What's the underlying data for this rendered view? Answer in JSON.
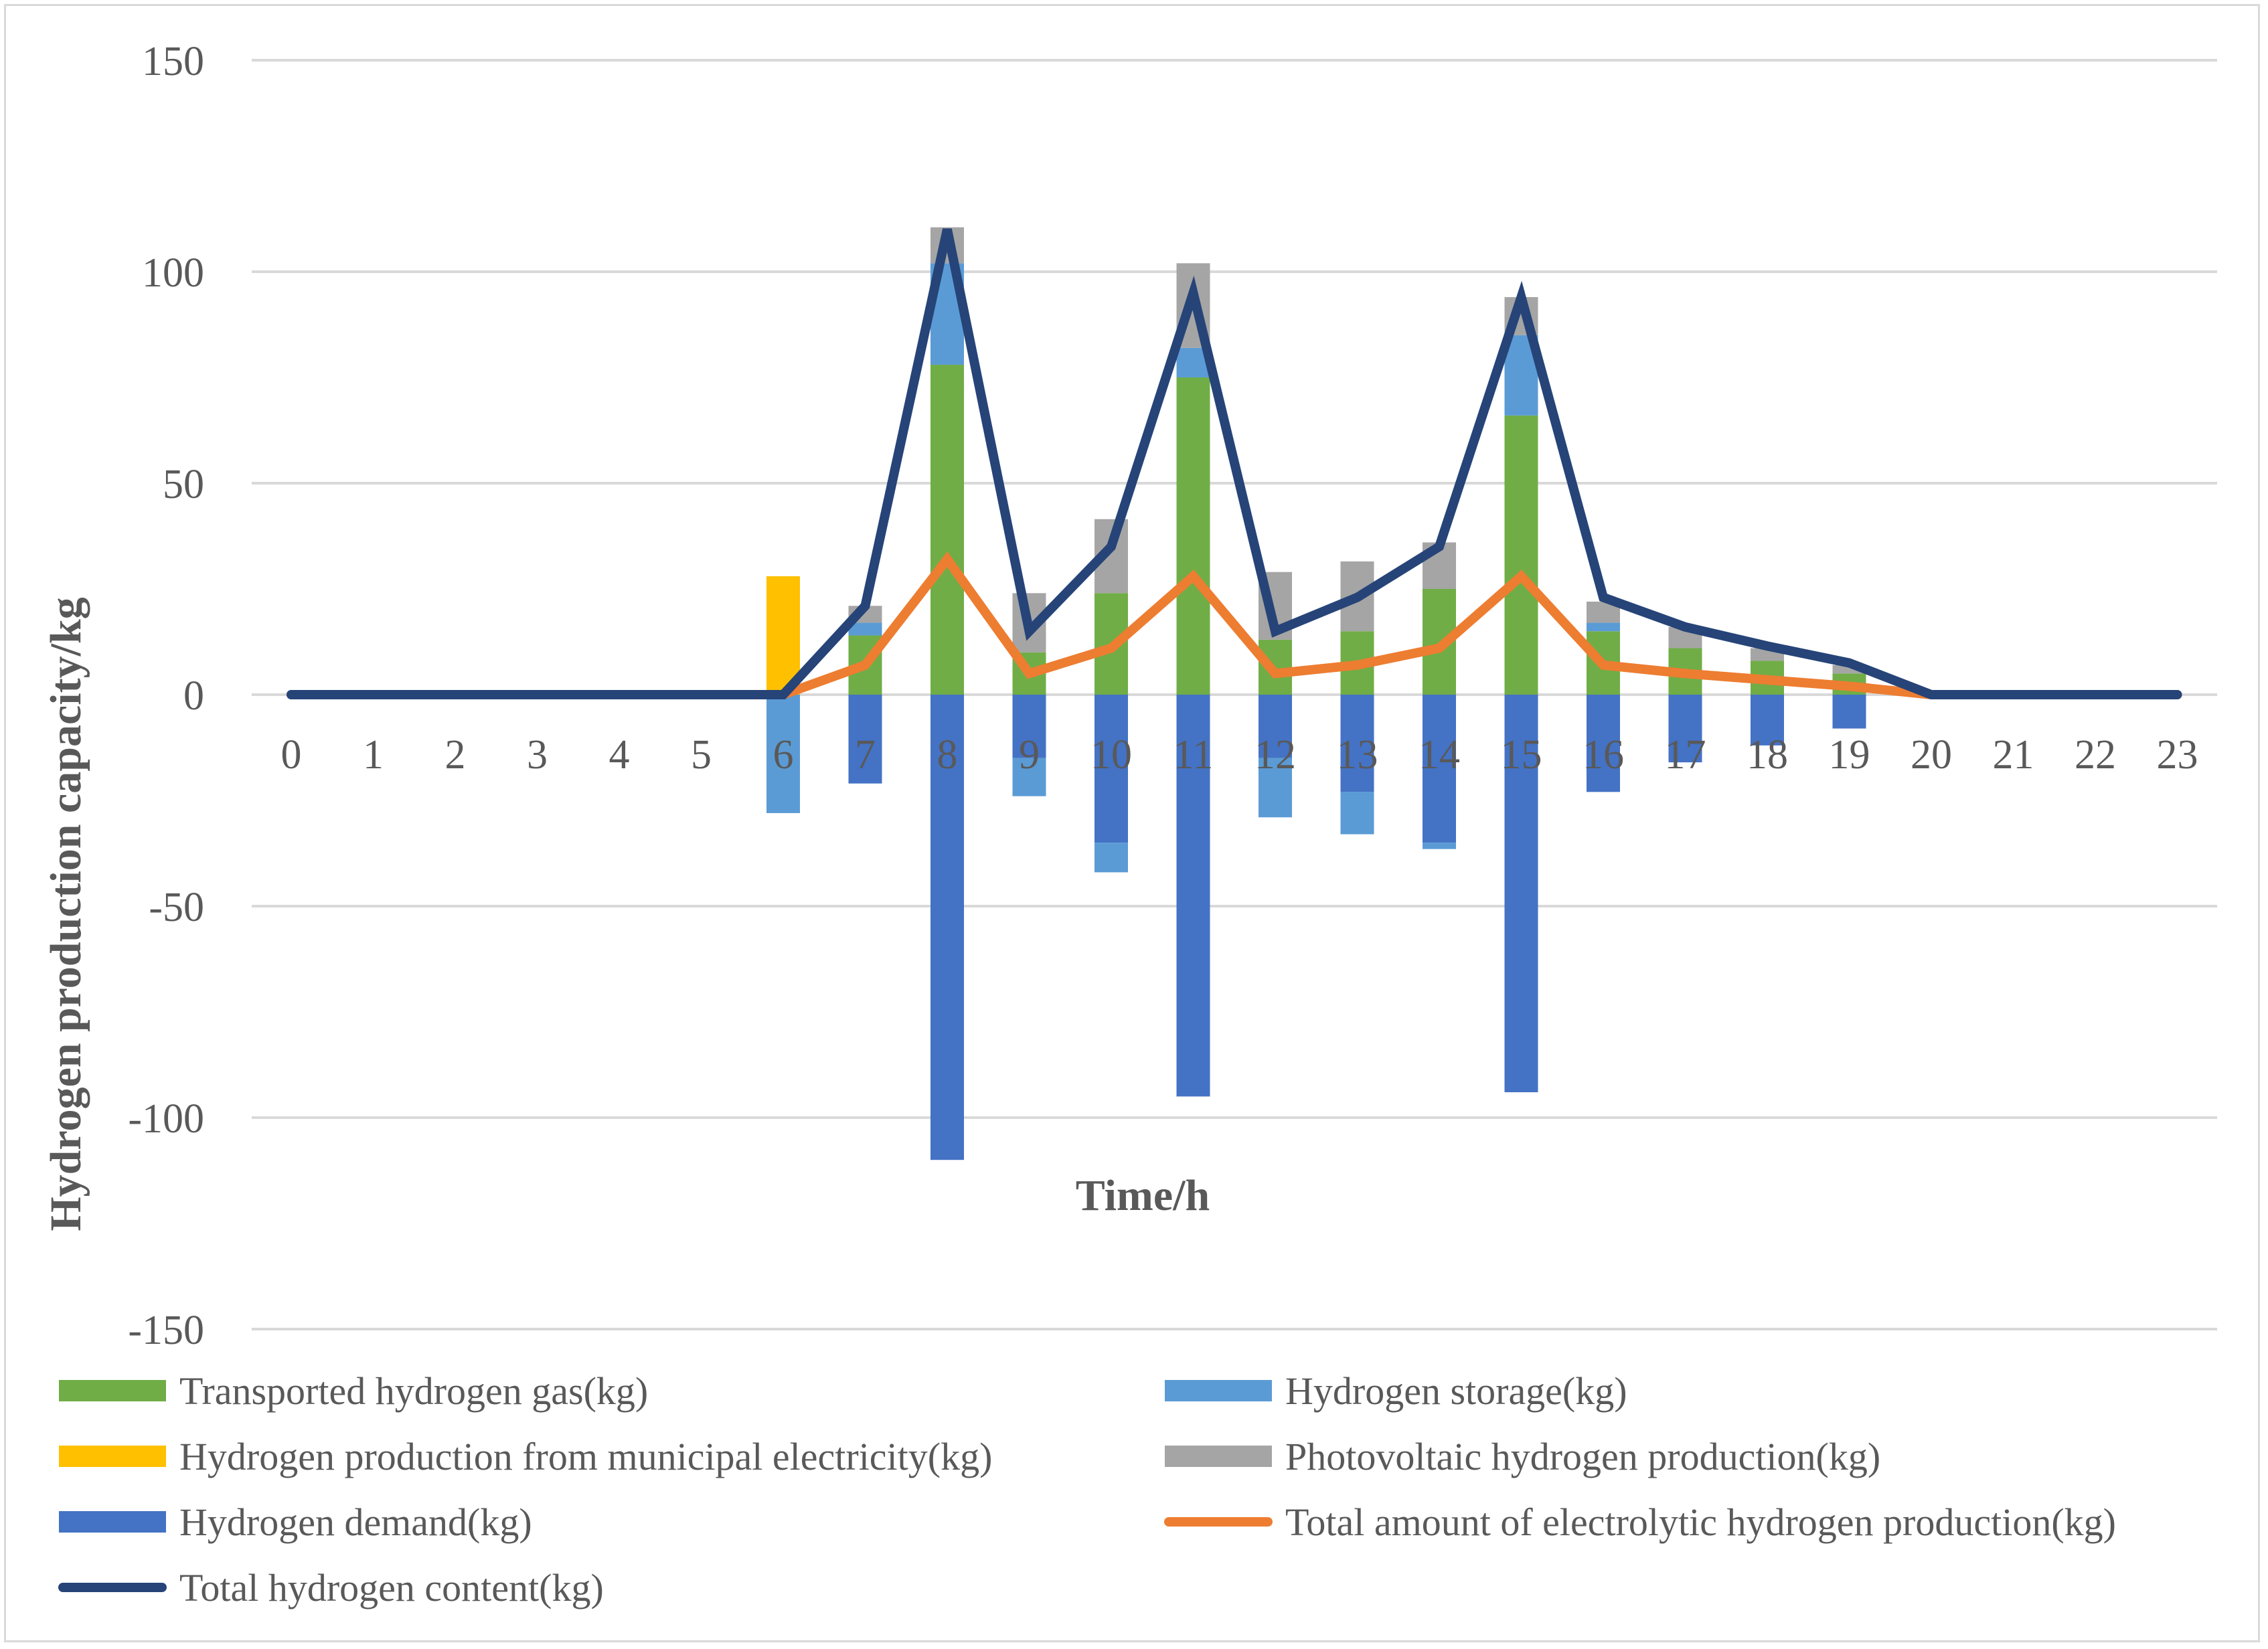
{
  "chart_data": {
    "type": "bar",
    "title": "",
    "xlabel": "Time/h",
    "ylabel": "Hydrogen production capacity/kg",
    "ylim": [
      -150,
      150
    ],
    "yticks": [
      "150",
      "100",
      "50",
      "0",
      "-50",
      "-100",
      "-150"
    ],
    "categories": [
      "0",
      "1",
      "2",
      "3",
      "4",
      "5",
      "6",
      "7",
      "8",
      "9",
      "10",
      "11",
      "12",
      "13",
      "14",
      "15",
      "16",
      "17",
      "18",
      "19",
      "20",
      "21",
      "22",
      "23"
    ],
    "grid": true,
    "legend_position": "bottom",
    "series": [
      {
        "name": "Transported hydrogen gas(kg)",
        "kind": "bar",
        "color": "#70ad47",
        "values": [
          0,
          0,
          0,
          0,
          0,
          0,
          0,
          14,
          78,
          10,
          24,
          75,
          13,
          15,
          25,
          66,
          15,
          11,
          8,
          5,
          0,
          0,
          0,
          0
        ]
      },
      {
        "name": "Hydrogen storage(kg)",
        "kind": "bar",
        "color": "#5b9bd5",
        "values": [
          0,
          0,
          0,
          0,
          0,
          0,
          0,
          3,
          24,
          0,
          0,
          7,
          0,
          0,
          0,
          19,
          2,
          0,
          0,
          0,
          0,
          0,
          0,
          0
        ]
      },
      {
        "name": "Hydrogen production from municipal electricity(kg)",
        "kind": "bar",
        "color": "#ffc000",
        "values": [
          0,
          0,
          0,
          0,
          0,
          0,
          28,
          0,
          0,
          0,
          0,
          0,
          0,
          0,
          0,
          0,
          0,
          0,
          0,
          0,
          0,
          0,
          0,
          0
        ]
      },
      {
        "name": "Photovoltaic hydrogen production(kg)",
        "kind": "bar",
        "color": "#a5a5a5",
        "values": [
          0,
          0,
          0,
          0,
          0,
          0,
          0,
          4,
          8.5,
          14,
          17.5,
          20,
          16,
          16.5,
          11,
          9,
          5,
          5,
          3,
          2,
          0,
          0,
          0,
          0
        ]
      },
      {
        "name": "Hydrogen demand(kg)",
        "kind": "bar",
        "color": "#4472c4",
        "values": [
          0,
          0,
          0,
          0,
          0,
          0,
          0,
          -21,
          -110,
          -15,
          -35,
          -95,
          -15,
          -23,
          -35,
          -94,
          -23,
          -16,
          -12,
          -8,
          0,
          0,
          0,
          0
        ]
      },
      {
        "name": "Hydrogen storage (charging)",
        "kind": "bar",
        "color": "#5b9bd5",
        "legend": false,
        "values": [
          0,
          0,
          0,
          0,
          0,
          0,
          -28,
          0,
          0,
          -9,
          -7,
          0,
          -14,
          -10,
          -1.5,
          0,
          0,
          0,
          0,
          0,
          0,
          0,
          0,
          0
        ]
      },
      {
        "name": "Total amount of electrolytic hydrogen production(kg)",
        "kind": "line",
        "color": "#ed7d31",
        "values": [
          0,
          0,
          0,
          0,
          0,
          0,
          0,
          7,
          32,
          5,
          11,
          28,
          5,
          7,
          11,
          28,
          7,
          5,
          3.5,
          2,
          0,
          0,
          0,
          0
        ]
      },
      {
        "name": "Total hydrogen content(kg)",
        "kind": "line",
        "color": "#264478",
        "values": [
          0,
          0,
          0,
          0,
          0,
          0,
          0,
          21,
          110,
          15,
          35,
          95,
          15,
          23,
          35,
          94,
          23,
          16,
          11.5,
          7.5,
          0,
          0,
          0,
          0
        ]
      }
    ]
  }
}
